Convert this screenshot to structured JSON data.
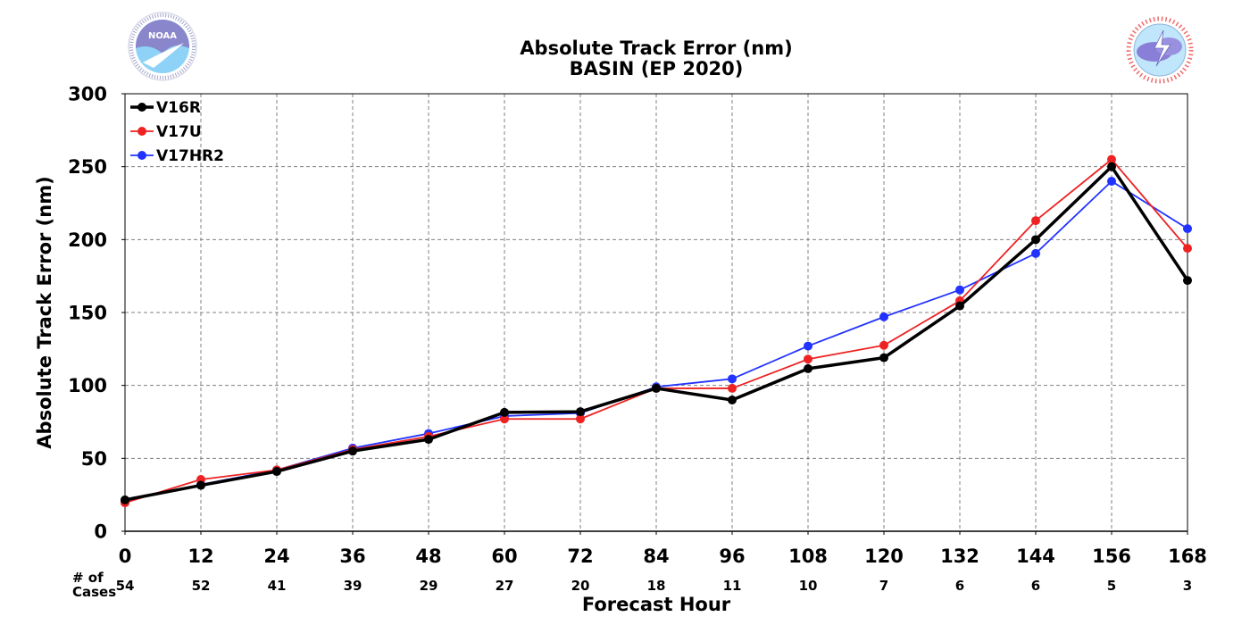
{
  "logos": {
    "left": {
      "name": "NOAA",
      "ring_text": "NATIONAL OCEANIC AND ATMOSPHERIC ADMINISTRATION · U.S. DEPARTMENT OF COMMERCE",
      "colors": {
        "blue": "#2b2e9a",
        "sky": "#8ed3f7"
      }
    },
    "right": {
      "ring_text": "NATIONAL WEATHER SERVICE",
      "colors": {
        "red": "#e52e2e",
        "purple": "#8a7fd8",
        "sky": "#bfe6fb"
      }
    }
  },
  "chart_data": {
    "type": "line",
    "title": "Absolute Track Error (nm)",
    "subtitle": "BASIN (EP 2020)",
    "xlabel": "Forecast Hour",
    "ylabel": "Absolute Track Error (nm)",
    "x": [
      0,
      12,
      24,
      36,
      48,
      60,
      72,
      84,
      96,
      108,
      120,
      132,
      144,
      156,
      168
    ],
    "xlim": [
      0,
      168
    ],
    "ylim": [
      0,
      300
    ],
    "yticks": [
      0,
      50,
      100,
      150,
      200,
      250,
      300
    ],
    "grid": true,
    "legend_position": "top-left",
    "cases_label": [
      "# of",
      "Cases"
    ],
    "cases": [
      54,
      52,
      41,
      39,
      29,
      27,
      20,
      18,
      11,
      10,
      7,
      6,
      6,
      5,
      3
    ],
    "series": [
      {
        "name": "V16R",
        "color": "#000000",
        "width": 3.5,
        "values": [
          21.5,
          31.5,
          41,
          55,
          63,
          81.5,
          82,
          98,
          90,
          111.5,
          119,
          154.5,
          200,
          250,
          172
        ]
      },
      {
        "name": "V17U",
        "color": "#ee2222",
        "width": 1.8,
        "values": [
          19.5,
          35.5,
          42,
          56,
          65,
          77,
          77,
          98,
          98,
          118,
          127.5,
          158,
          213,
          255,
          194
        ]
      },
      {
        "name": "V17HR2",
        "color": "#2233ff",
        "width": 1.8,
        "values": [
          21,
          32,
          42,
          57,
          67,
          79,
          81,
          99,
          104.5,
          127,
          147,
          165.5,
          190.5,
          240,
          207.5
        ]
      }
    ]
  }
}
